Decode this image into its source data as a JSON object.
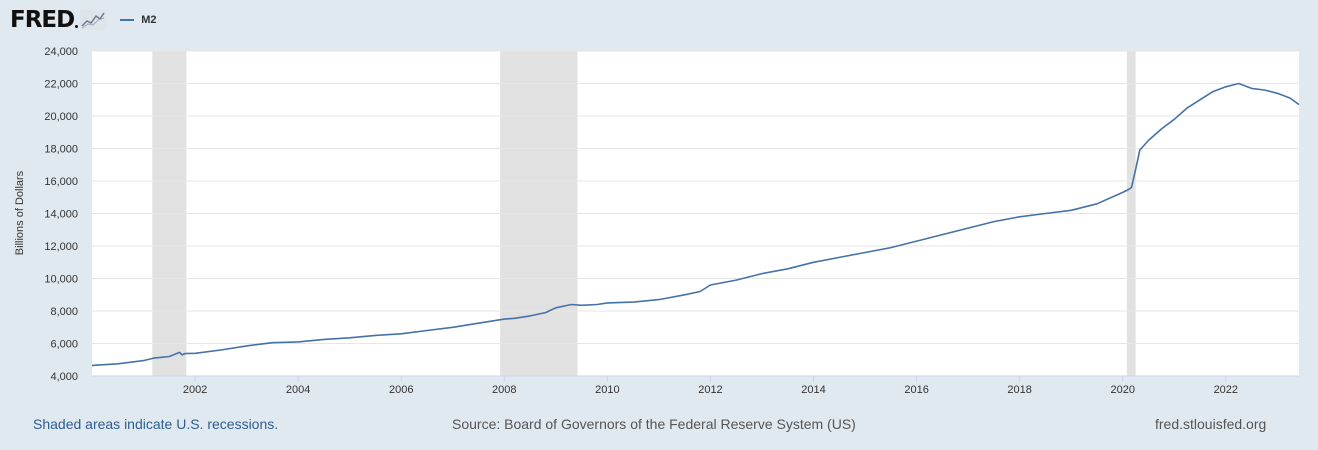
{
  "brand": {
    "name": "FRED",
    "logo_icon": "sparkline-chart-icon"
  },
  "colors": {
    "background": "#e1e9f0",
    "plot_background": "#ffffff",
    "series": "#4572a7",
    "recession": "#e1e1e1",
    "grid": "#e6e6e6",
    "link": "#2e5c94"
  },
  "footer": {
    "recession_note": "Shaded areas indicate U.S. recessions.",
    "source": "Source: Board of Governors of the Federal Reserve System (US)",
    "site": "fred.stlouisfed.org"
  },
  "chart_data": {
    "type": "line",
    "title": "",
    "xlabel": "",
    "ylabel": "Billions of Dollars",
    "xlim": [
      2000.0,
      2023.42
    ],
    "ylim": [
      4000,
      24000
    ],
    "x_ticks": [
      2002,
      2004,
      2006,
      2008,
      2010,
      2012,
      2014,
      2016,
      2018,
      2020,
      2022
    ],
    "y_ticks": [
      4000,
      6000,
      8000,
      10000,
      12000,
      14000,
      16000,
      18000,
      20000,
      22000,
      24000
    ],
    "y_tick_labels": [
      "4,000",
      "6,000",
      "8,000",
      "10,000",
      "12,000",
      "14,000",
      "16,000",
      "18,000",
      "20,000",
      "22,000",
      "24,000"
    ],
    "grid": true,
    "legend_position": "top-left",
    "recessions": [
      [
        2001.17,
        2001.83
      ],
      [
        2007.92,
        2009.42
      ],
      [
        2020.08,
        2020.25
      ]
    ],
    "series": [
      {
        "name": "M2",
        "x": [
          2000.0,
          2000.5,
          2001.0,
          2001.2,
          2001.5,
          2001.7,
          2001.75,
          2001.8,
          2002.0,
          2002.5,
          2003.0,
          2003.5,
          2004.0,
          2004.5,
          2005.0,
          2005.5,
          2006.0,
          2006.5,
          2007.0,
          2007.5,
          2008.0,
          2008.2,
          2008.5,
          2008.8,
          2009.0,
          2009.3,
          2009.5,
          2009.8,
          2010.0,
          2010.5,
          2011.0,
          2011.5,
          2011.8,
          2012.0,
          2012.5,
          2013.0,
          2013.5,
          2014.0,
          2014.5,
          2015.0,
          2015.5,
          2016.0,
          2016.5,
          2017.0,
          2017.5,
          2018.0,
          2018.5,
          2019.0,
          2019.5,
          2020.0,
          2020.1,
          2020.17,
          2020.25,
          2020.33,
          2020.5,
          2020.75,
          2021.0,
          2021.25,
          2021.5,
          2021.75,
          2022.0,
          2022.25,
          2022.5,
          2022.75,
          2023.0,
          2023.25,
          2023.42
        ],
        "values": [
          4650,
          4750,
          4950,
          5100,
          5200,
          5450,
          5300,
          5380,
          5400,
          5600,
          5850,
          6050,
          6100,
          6250,
          6350,
          6500,
          6600,
          6800,
          7000,
          7250,
          7500,
          7550,
          7700,
          7900,
          8200,
          8400,
          8350,
          8400,
          8500,
          8550,
          8700,
          9000,
          9200,
          9600,
          9900,
          10300,
          10600,
          11000,
          11300,
          11600,
          11900,
          12300,
          12700,
          13100,
          13500,
          13800,
          14000,
          14200,
          14600,
          15300,
          15450,
          15600,
          16700,
          17900,
          18500,
          19200,
          19800,
          20500,
          21000,
          21500,
          21800,
          22000,
          21700,
          21600,
          21400,
          21100,
          20700
        ]
      }
    ]
  }
}
